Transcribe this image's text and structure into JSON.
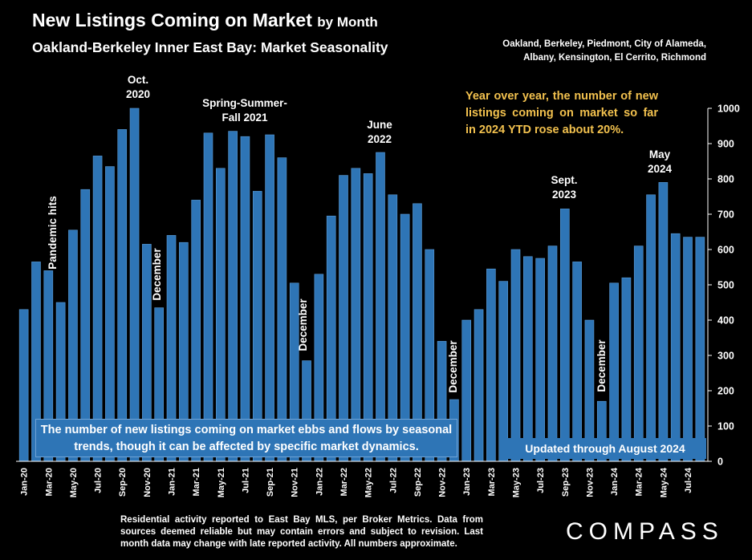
{
  "header": {
    "title_main": "New Listings Coming on Market",
    "title_suffix": "by Month",
    "subtitle": "Oakland-Berkeley Inner East Bay: Market Seasonality",
    "areas_line1": "Oakland, Berkeley, Piedmont, City of Alameda,",
    "areas_line2": "Albany, Kensington, El Cerrito, Richmond"
  },
  "callouts": {
    "yoy_note": "Year over year, the number of new listings coming on market so far in 2024 YTD rose about 20%.",
    "oct2020_1": "Oct.",
    "oct2020_2": "2020",
    "pandemic": "Pandemic hits",
    "december": "December",
    "ssf_1": "Spring-Summer-",
    "ssf_2": "Fall  2021",
    "june_1": "June",
    "june_2": "2022",
    "sept_1": "Sept.",
    "sept_2": "2023",
    "may_1": "May",
    "may_2": "2024",
    "caption": "The number of new listings coming on market ebbs and flows by seasonal trends, though it can be affected by specific market dynamics.",
    "updated": "Updated through August 2024"
  },
  "footer": {
    "note": "Residential activity reported to East Bay MLS, per Broker Metrics. Data from sources deemed reliable but may contain errors and subject to revision. Last month data may change with late reported activity. All numbers approximate.",
    "brand": "COMPASS"
  },
  "colors": {
    "bar": "#2e75b6",
    "bar_edge": "#5b9bd5",
    "axis": "#ffffff",
    "note": "#f2c14e"
  },
  "chart_data": {
    "type": "bar",
    "ylim": [
      0,
      1000
    ],
    "yticks": [
      0,
      100,
      200,
      300,
      400,
      500,
      600,
      700,
      800,
      900,
      1000
    ],
    "categories": [
      "Jan-20",
      "Feb-20",
      "Mar-20",
      "Apr-20",
      "May-20",
      "Jun-20",
      "Jul-20",
      "Aug-20",
      "Sep-20",
      "Oct-20",
      "Nov-20",
      "Dec-20",
      "Jan-21",
      "Feb-21",
      "Mar-21",
      "Apr-21",
      "May-21",
      "Jun-21",
      "Jul-21",
      "Aug-21",
      "Sep-21",
      "Oct-21",
      "Nov-21",
      "Dec-21",
      "Jan-22",
      "Feb-22",
      "Mar-22",
      "Apr-22",
      "May-22",
      "Jun-22",
      "Jul-22",
      "Aug-22",
      "Sep-22",
      "Oct-22",
      "Nov-22",
      "Dec-22",
      "Jan-23",
      "Feb-23",
      "Mar-23",
      "Apr-23",
      "May-23",
      "Jun-23",
      "Jul-23",
      "Aug-23",
      "Sep-23",
      "Oct-23",
      "Nov-23",
      "Dec-23",
      "Jan-24",
      "Feb-24",
      "Mar-24",
      "Apr-24",
      "May-24",
      "Jun-24",
      "Jul-24",
      "Aug-24"
    ],
    "xtick_labels": [
      "Jan-20",
      "Mar-20",
      "May-20",
      "Jul-20",
      "Sep-20",
      "Nov-20",
      "Jan-21",
      "Mar-21",
      "May-21",
      "Jul-21",
      "Sep-21",
      "Nov-21",
      "Jan-22",
      "Mar-22",
      "May-22",
      "Jul-22",
      "Sep-22",
      "Nov-22",
      "Jan-23",
      "Mar-23",
      "May-23",
      "Jul-23",
      "Sep-23",
      "Nov-23",
      "Jan-24",
      "Mar-24",
      "May-24",
      "Jul-24"
    ],
    "values": [
      430,
      565,
      540,
      450,
      655,
      770,
      865,
      835,
      940,
      1000,
      615,
      435,
      640,
      620,
      740,
      930,
      830,
      935,
      920,
      765,
      925,
      860,
      505,
      285,
      530,
      695,
      810,
      830,
      815,
      875,
      755,
      700,
      730,
      600,
      340,
      175,
      400,
      430,
      545,
      510,
      600,
      580,
      575,
      610,
      715,
      565,
      400,
      170,
      505,
      520,
      610,
      755,
      790,
      645,
      635,
      635
    ]
  }
}
